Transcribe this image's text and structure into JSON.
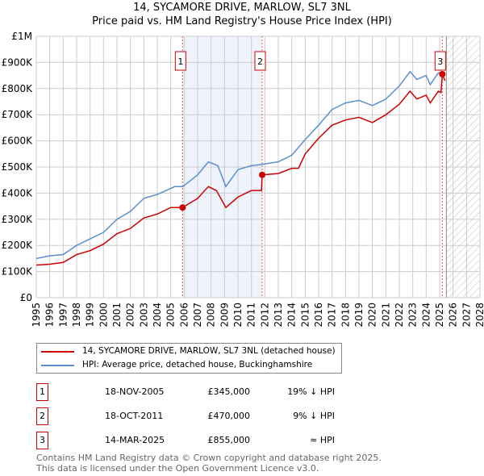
{
  "title": "14, SYCAMORE DRIVE, MARLOW, SL7 3NL",
  "subtitle": "Price paid vs. HM Land Registry's House Price Index (HPI)",
  "chart_data": {
    "type": "line",
    "ylim": [
      0,
      1000000
    ],
    "xlim": [
      1995,
      2028
    ],
    "yticks": [
      {
        "v": 0,
        "label": "£0"
      },
      {
        "v": 100000,
        "label": "£100K"
      },
      {
        "v": 200000,
        "label": "£200K"
      },
      {
        "v": 300000,
        "label": "£300K"
      },
      {
        "v": 400000,
        "label": "£400K"
      },
      {
        "v": 500000,
        "label": "£500K"
      },
      {
        "v": 600000,
        "label": "£600K"
      },
      {
        "v": 700000,
        "label": "£700K"
      },
      {
        "v": 800000,
        "label": "£800K"
      },
      {
        "v": 900000,
        "label": "£900K"
      },
      {
        "v": 1000000,
        "label": "£1M"
      }
    ],
    "xticks": [
      "1995",
      "1996",
      "1997",
      "1998",
      "1999",
      "2000",
      "2001",
      "2002",
      "2003",
      "2004",
      "2005",
      "2006",
      "2007",
      "2008",
      "2009",
      "2010",
      "2011",
      "2012",
      "2013",
      "2014",
      "2015",
      "2016",
      "2017",
      "2018",
      "2019",
      "2020",
      "2021",
      "2022",
      "2023",
      "2024",
      "2025",
      "2026",
      "2027",
      "2028"
    ],
    "series": [
      {
        "name": "14, SYCAMORE DRIVE, MARLOW, SL7 3NL (detached house)",
        "color": "#cc0000",
        "x": [
          1995,
          1996,
          1997,
          1998,
          1999,
          2000,
          2001,
          2002,
          2003,
          2004,
          2005,
          2005.88,
          2007,
          2007.8,
          2008.4,
          2009.1,
          2010,
          2011,
          2011.75,
          2011.8,
          2013,
          2014,
          2014.5,
          2015,
          2016,
          2017,
          2018,
          2019,
          2020,
          2021,
          2022,
          2022.8,
          2023.3,
          2024,
          2024.3,
          2024.9,
          2025.1,
          2025.2,
          2025.4
        ],
        "y": [
          125000,
          128000,
          135000,
          165000,
          180000,
          205000,
          245000,
          265000,
          305000,
          320000,
          345000,
          345000,
          380000,
          425000,
          410000,
          345000,
          385000,
          410000,
          410000,
          470000,
          475000,
          495000,
          495000,
          550000,
          610000,
          660000,
          680000,
          690000,
          670000,
          700000,
          740000,
          790000,
          760000,
          775000,
          745000,
          790000,
          785000,
          855000,
          830000
        ]
      },
      {
        "name": "HPI: Average price, detached house, Buckinghamshire",
        "color": "#5b8fd0",
        "x": [
          1995,
          1996,
          1997,
          1998,
          1999,
          2000,
          2001,
          2002,
          2003,
          2004,
          2005.3,
          2005.9,
          2007,
          2007.8,
          2008.5,
          2009.1,
          2010,
          2011,
          2011.8,
          2013,
          2014,
          2015,
          2016,
          2017,
          2018,
          2019,
          2020,
          2021,
          2022,
          2022.8,
          2023.3,
          2024,
          2024.3,
          2024.9,
          2025.4
        ],
        "y": [
          150000,
          160000,
          165000,
          200000,
          225000,
          250000,
          300000,
          330000,
          380000,
          395000,
          425000,
          425000,
          470000,
          520000,
          505000,
          425000,
          490000,
          505000,
          510000,
          520000,
          545000,
          605000,
          660000,
          720000,
          745000,
          755000,
          735000,
          760000,
          810000,
          865000,
          835000,
          850000,
          815000,
          860000,
          860000
        ]
      }
    ],
    "sales": [
      {
        "id": "1",
        "x": 2005.88,
        "y": 345000
      },
      {
        "id": "2",
        "x": 2011.8,
        "y": 470000
      },
      {
        "id": "3",
        "x": 2025.2,
        "y": 855000
      }
    ],
    "shaded_range": [
      2005.88,
      2011.8
    ],
    "forecast_from": 2025.5
  },
  "legend": [
    "14, SYCAMORE DRIVE, MARLOW, SL7 3NL (detached house)",
    "HPI: Average price, detached house, Buckinghamshire"
  ],
  "transactions": [
    {
      "id": "1",
      "date": "18-NOV-2005",
      "price": "£345,000",
      "hpi": "19% ↓ HPI"
    },
    {
      "id": "2",
      "date": "18-OCT-2011",
      "price": "£470,000",
      "hpi": "9% ↓ HPI"
    },
    {
      "id": "3",
      "date": "14-MAR-2025",
      "price": "£855,000",
      "hpi": "≈ HPI"
    }
  ],
  "footer": [
    "Contains HM Land Registry data © Crown copyright and database right 2025.",
    "This data is licensed under the Open Government Licence v3.0."
  ]
}
